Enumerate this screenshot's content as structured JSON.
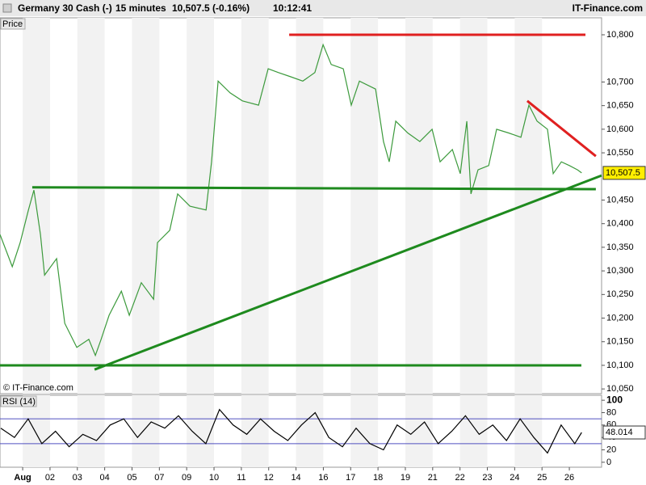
{
  "header": {
    "instrument": "Germany 30 Cash (-)",
    "interval": "15 minutes",
    "quote": "10,507.5 (-0.16%)",
    "time": "10:12:41",
    "site": "IT-Finance.com"
  },
  "copyright": "© IT-Finance.com",
  "chart_data": [
    {
      "type": "line",
      "label": "Price",
      "color": "#3c9a3c",
      "xlim": [
        -0.83,
        21.18
      ],
      "ylim": [
        10040,
        10836
      ],
      "yticks": [
        {
          "value": 10050,
          "label": "10,050"
        },
        {
          "value": 10100,
          "label": "10,100"
        },
        {
          "value": 10150,
          "label": "10,150"
        },
        {
          "value": 10200,
          "label": "10,200"
        },
        {
          "value": 10250,
          "label": "10,250"
        },
        {
          "value": 10300,
          "label": "10,300"
        },
        {
          "value": 10350,
          "label": "10,350"
        },
        {
          "value": 10400,
          "label": "10,400"
        },
        {
          "value": 10450,
          "label": "10,450"
        },
        {
          "value": 10550,
          "label": "10,550"
        },
        {
          "value": 10600,
          "label": "10,600"
        },
        {
          "value": 10650,
          "label": "10,650"
        },
        {
          "value": 10700,
          "label": "10,700"
        },
        {
          "value": 10800,
          "label": "10,800"
        }
      ],
      "x": [
        -0.83,
        -0.38,
        -0.09,
        0.21,
        0.41,
        0.65,
        0.8,
        1.24,
        1.54,
        1.98,
        2.42,
        2.66,
        2.87,
        3.16,
        3.61,
        3.9,
        4.34,
        4.79,
        4.93,
        5.38,
        5.67,
        6.12,
        6.71,
        6.91,
        7.15,
        7.59,
        8.04,
        8.63,
        8.98,
        9.36,
        9.81,
        10.25,
        10.69,
        10.99,
        11.29,
        11.73,
        12.02,
        12.32,
        12.91,
        13.2,
        13.41,
        13.65,
        14.09,
        14.53,
        14.98,
        15.27,
        15.72,
        16.01,
        16.25,
        16.4,
        16.66,
        17.05,
        17.34,
        17.78,
        18.23,
        18.52,
        18.82,
        19.2,
        19.41,
        19.71,
        20.0,
        20.3,
        20.45
      ],
      "values": [
        10377,
        10309,
        10360,
        10429,
        10471,
        10377,
        10291,
        10326,
        10189,
        10138,
        10155,
        10121,
        10155,
        10206,
        10257,
        10206,
        10275,
        10240,
        10360,
        10386,
        10463,
        10437,
        10429,
        10531,
        10702,
        10677,
        10660,
        10651,
        10728,
        10720,
        10711,
        10702,
        10720,
        10779,
        10737,
        10728,
        10651,
        10702,
        10685,
        10574,
        10531,
        10617,
        10592,
        10574,
        10600,
        10531,
        10557,
        10506,
        10617,
        10463,
        10514,
        10523,
        10600,
        10592,
        10583,
        10651,
        10617,
        10600,
        10506,
        10531,
        10523,
        10514,
        10507.5
      ],
      "last_value": {
        "value": 10507.5,
        "label": "10,507.5"
      },
      "lines": [
        {
          "color": "#e02020",
          "x": [
            9.75,
            20.59
          ],
          "y": [
            10800,
            10800
          ]
        },
        {
          "color": "#e02020",
          "x": [
            18.46,
            20.97
          ],
          "y": [
            10660,
            10543
          ]
        },
        {
          "color": "#1e8a1e",
          "x": [
            0.35,
            20.97
          ],
          "y": [
            10477,
            10473
          ]
        },
        {
          "color": "#1e8a1e",
          "x": [
            2.63,
            21.18
          ],
          "y": [
            10091,
            10502
          ]
        },
        {
          "color": "#1e8a1e",
          "x": [
            -0.83,
            20.44
          ],
          "y": [
            10100,
            10100
          ]
        }
      ]
    },
    {
      "type": "line",
      "label": "RSI (14)",
      "color": "#000000",
      "xlim": [
        -0.83,
        21.18
      ],
      "ylim": [
        -8,
        108
      ],
      "yticks": [
        0,
        20,
        40,
        60,
        80,
        100
      ],
      "bands": [
        30,
        70
      ],
      "xticks": [
        {
          "value": 0,
          "label": "Aug"
        },
        {
          "value": 1,
          "label": "02"
        },
        {
          "value": 2,
          "label": "03"
        },
        {
          "value": 3,
          "label": "04"
        },
        {
          "value": 4,
          "label": "05"
        },
        {
          "value": 5,
          "label": "07"
        },
        {
          "value": 6,
          "label": "09"
        },
        {
          "value": 7,
          "label": "10"
        },
        {
          "value": 8,
          "label": "11"
        },
        {
          "value": 9,
          "label": "12"
        },
        {
          "value": 10,
          "label": "14"
        },
        {
          "value": 11,
          "label": "16"
        },
        {
          "value": 12,
          "label": "17"
        },
        {
          "value": 13,
          "label": "18"
        },
        {
          "value": 14,
          "label": "19"
        },
        {
          "value": 15,
          "label": "21"
        },
        {
          "value": 16,
          "label": "22"
        },
        {
          "value": 17,
          "label": "23"
        },
        {
          "value": 18,
          "label": "24"
        },
        {
          "value": 19,
          "label": "25"
        },
        {
          "value": 20,
          "label": "26"
        }
      ],
      "x": [
        -0.8,
        -0.3,
        0.2,
        0.7,
        1.2,
        1.7,
        2.2,
        2.7,
        3.2,
        3.7,
        4.2,
        4.7,
        5.2,
        5.7,
        6.2,
        6.7,
        7.2,
        7.7,
        8.2,
        8.7,
        9.2,
        9.7,
        10.2,
        10.7,
        11.2,
        11.7,
        12.2,
        12.7,
        13.2,
        13.7,
        14.2,
        14.7,
        15.2,
        15.7,
        16.2,
        16.7,
        17.2,
        17.7,
        18.2,
        18.7,
        19.2,
        19.7,
        20.2,
        20.45
      ],
      "values": [
        55,
        40,
        70,
        30,
        50,
        25,
        45,
        35,
        60,
        70,
        40,
        65,
        55,
        75,
        50,
        30,
        85,
        60,
        45,
        70,
        50,
        35,
        60,
        80,
        40,
        25,
        55,
        30,
        20,
        60,
        45,
        65,
        30,
        50,
        75,
        45,
        60,
        35,
        70,
        40,
        15,
        60,
        30,
        48.014
      ],
      "last_value": 48.014
    }
  ]
}
